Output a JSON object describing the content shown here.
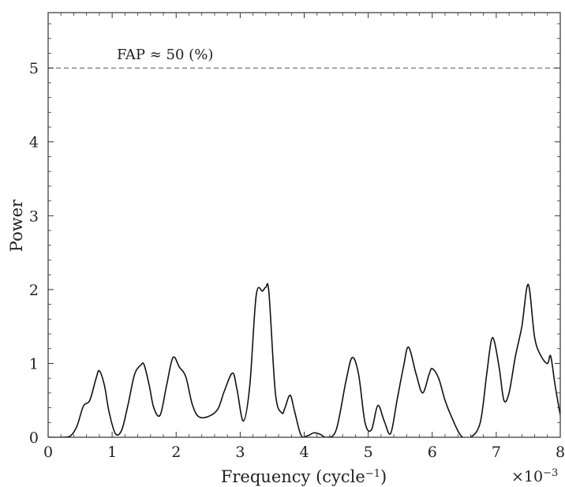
{
  "chart_data": {
    "type": "line",
    "title": "",
    "xlabel": "Frequency (cycle",
    "xlabel_superscript": "−1",
    "xlabel_close": ")",
    "ylabel": "Power",
    "x_multiplier": "×10",
    "x_multiplier_exponent": "−3",
    "xlim": [
      0,
      8
    ],
    "ylim": [
      0,
      5.75
    ],
    "x_ticks": [
      0,
      1,
      2,
      3,
      4,
      5,
      6,
      7,
      8
    ],
    "x_tick_labels": [
      "0",
      "1",
      "2",
      "3",
      "4",
      "5",
      "6",
      "7",
      "8"
    ],
    "y_ticks": [
      0,
      1,
      2,
      3,
      4,
      5
    ],
    "y_tick_labels": [
      "0",
      "1",
      "2",
      "3",
      "4",
      "5"
    ],
    "grid": false,
    "legend": "none",
    "fap_line": {
      "y": 5.0,
      "label": "FAP ≈ 50 (%)",
      "style": "dashed",
      "color": "#666666"
    },
    "series": [
      {
        "color": "#111111",
        "x": [
          0,
          0.2,
          0.35,
          0.45,
          0.55,
          0.65,
          0.75,
          0.8,
          0.88,
          0.95,
          1.05,
          1.15,
          1.25,
          1.35,
          1.45,
          1.5,
          1.58,
          1.65,
          1.75,
          1.85,
          1.95,
          2.05,
          2.15,
          2.25,
          2.35,
          2.5,
          2.65,
          2.75,
          2.88,
          2.95,
          3.05,
          3.15,
          3.25,
          3.35,
          3.4,
          3.45,
          3.55,
          3.65,
          3.7,
          3.78,
          3.85,
          3.95,
          4.05,
          4.15,
          4.25,
          4.35,
          4.5,
          4.65,
          4.75,
          4.85,
          4.95,
          5.05,
          5.15,
          5.25,
          5.35,
          5.45,
          5.55,
          5.63,
          5.75,
          5.85,
          5.95,
          6.0,
          6.1,
          6.2,
          6.3,
          6.45,
          6.6,
          6.75,
          6.85,
          6.92,
          6.97,
          7.05,
          7.12,
          7.2,
          7.3,
          7.4,
          7.5,
          7.6,
          7.7,
          7.8,
          7.85,
          7.92,
          8.0
        ],
        "y": [
          0,
          0.0,
          0.02,
          0.15,
          0.42,
          0.5,
          0.8,
          0.9,
          0.7,
          0.35,
          0.05,
          0.1,
          0.45,
          0.85,
          0.98,
          0.98,
          0.7,
          0.4,
          0.3,
          0.7,
          1.08,
          0.95,
          0.82,
          0.45,
          0.28,
          0.28,
          0.38,
          0.62,
          0.87,
          0.65,
          0.22,
          0.7,
          1.92,
          1.98,
          2.03,
          1.95,
          0.6,
          0.33,
          0.4,
          0.57,
          0.35,
          0.03,
          0.02,
          0.06,
          0.04,
          0.0,
          0.1,
          0.75,
          1.08,
          0.85,
          0.2,
          0.1,
          0.43,
          0.22,
          0.05,
          0.5,
          0.95,
          1.22,
          0.85,
          0.6,
          0.85,
          0.93,
          0.8,
          0.5,
          0.28,
          0.02,
          0.0,
          0.2,
          0.85,
          1.3,
          1.3,
          0.92,
          0.5,
          0.6,
          1.1,
          1.5,
          2.07,
          1.35,
          1.1,
          1.0,
          1.1,
          0.7,
          0.3
        ]
      }
    ]
  }
}
